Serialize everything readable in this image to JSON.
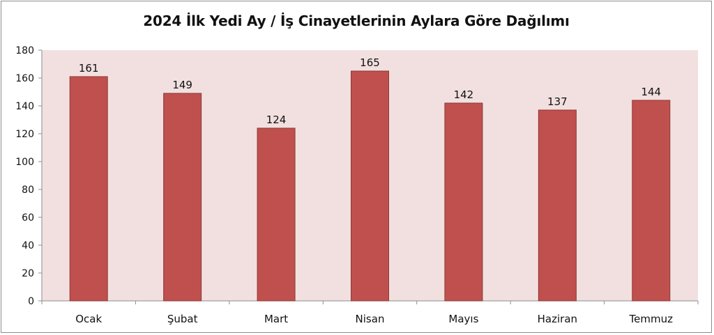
{
  "chart_data": {
    "type": "bar",
    "title": "2024 İlk Yedi Ay / İş Cinayetlerinin Aylara Göre Dağılımı",
    "xlabel": "",
    "ylabel": "",
    "categories": [
      "Ocak",
      "Şubat",
      "Mart",
      "Nisan",
      "Mayıs",
      "Haziran",
      "Temmuz"
    ],
    "values": [
      161,
      149,
      124,
      165,
      142,
      137,
      144
    ],
    "data_labels": [
      "161",
      "149",
      "124",
      "165",
      "142",
      "137",
      "144"
    ],
    "ylim": [
      0,
      180
    ],
    "yticks": [
      0,
      20,
      40,
      60,
      80,
      100,
      120,
      140,
      160,
      180
    ],
    "grid": false,
    "legend": "none",
    "colors": {
      "bar_fill": "#c0504d",
      "bar_stroke": "#8c3836",
      "plot_background": "#f2e0e0",
      "axis": "#8c8c8c",
      "text": "#111111"
    }
  }
}
